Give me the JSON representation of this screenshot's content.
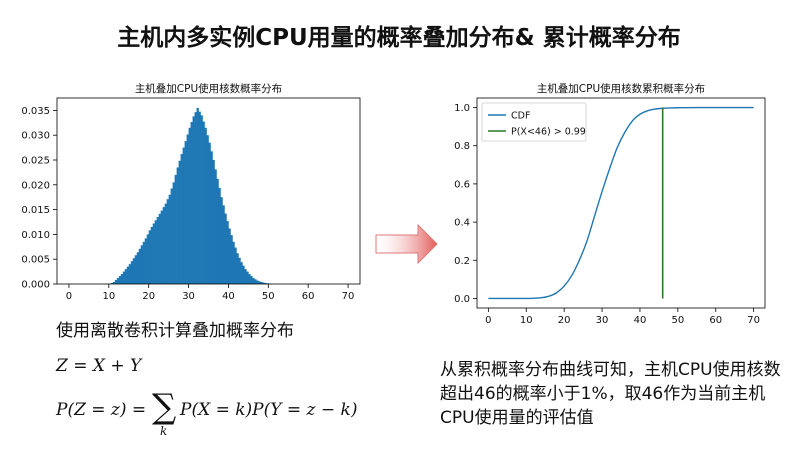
{
  "title": "主机内多实例CPU用量的概率叠加分布& 累计概率分布",
  "left_caption": "使用离散卷积计算叠加概率分布",
  "formula_line1": "Z = X + Y",
  "formula_line2_left": "P(Z = z) =",
  "formula_sum_symbol": "∑",
  "formula_sum_index": "k",
  "formula_line2_right": "P(X = k)P(Y = z − k)",
  "right_caption": "从累积概率分布曲线可知，主机CPU使用核数超出46的概率小于1%，取46作为当前主机CPU使用量的评估值",
  "colors": {
    "series": "#1f77b4",
    "threshold": "#2a7a2a",
    "arrow": "#e05050"
  },
  "chart_data": [
    {
      "type": "bar",
      "title": "主机叠加CPU使用核数概率分布",
      "xlabel": "",
      "ylabel": "",
      "xlim": [
        -3,
        73
      ],
      "ylim": [
        0,
        0.0375
      ],
      "xticks": [
        "0",
        "10",
        "20",
        "30",
        "40",
        "50",
        "60",
        "70"
      ],
      "yticks": [
        "0.000",
        "0.005",
        "0.010",
        "0.015",
        "0.020",
        "0.025",
        "0.030",
        "0.035"
      ],
      "grid": false,
      "bin_width": 0.5,
      "series": [
        {
          "values": [
            [
              11.0,
              0.0004
            ],
            [
              12.0,
              0.0012
            ],
            [
              13.0,
              0.002
            ],
            [
              14.0,
              0.003
            ],
            [
              15.0,
              0.004
            ],
            [
              16.0,
              0.0052
            ],
            [
              17.0,
              0.0064
            ],
            [
              18.0,
              0.0078
            ],
            [
              19.0,
              0.0092
            ],
            [
              20.0,
              0.0108
            ],
            [
              21.0,
              0.0122
            ],
            [
              22.0,
              0.0135
            ],
            [
              23.0,
              0.0148
            ],
            [
              24.0,
              0.0162
            ],
            [
              25.0,
              0.018
            ],
            [
              26.0,
              0.0205
            ],
            [
              27.0,
              0.0235
            ],
            [
              28.0,
              0.0262
            ],
            [
              29.0,
              0.0288
            ],
            [
              30.0,
              0.0315
            ],
            [
              31.0,
              0.0338
            ],
            [
              32.0,
              0.0355
            ],
            [
              33.0,
              0.034
            ],
            [
              34.0,
              0.0315
            ],
            [
              35.0,
              0.0285
            ],
            [
              36.0,
              0.025
            ],
            [
              37.0,
              0.0212
            ],
            [
              38.0,
              0.0175
            ],
            [
              39.0,
              0.0142
            ],
            [
              40.0,
              0.0112
            ],
            [
              41.0,
              0.0085
            ],
            [
              42.0,
              0.0062
            ],
            [
              43.0,
              0.0044
            ],
            [
              44.0,
              0.003
            ],
            [
              45.0,
              0.002
            ],
            [
              46.0,
              0.0012
            ],
            [
              47.0,
              0.0007
            ],
            [
              48.0,
              0.0004
            ],
            [
              49.0,
              0.0002
            ],
            [
              50.0,
              0.0001
            ]
          ]
        }
      ]
    },
    {
      "type": "line",
      "title": "主机叠加CPU使用核数累积概率分布",
      "xlabel": "",
      "ylabel": "",
      "xlim": [
        -3,
        73
      ],
      "ylim": [
        -0.05,
        1.05
      ],
      "xticks": [
        "0",
        "10",
        "20",
        "30",
        "40",
        "50",
        "60",
        "70"
      ],
      "yticks": [
        "0.0",
        "0.2",
        "0.4",
        "0.6",
        "0.8",
        "1.0"
      ],
      "grid": false,
      "legend_position": "top-left",
      "series": [
        {
          "name": "CDF",
          "x": [
            0,
            10,
            12,
            14,
            16,
            18,
            20,
            22,
            24,
            26,
            28,
            30,
            32,
            34,
            36,
            38,
            40,
            42,
            44,
            46,
            48,
            50,
            55,
            70
          ],
          "y": [
            0.0,
            0.0,
            0.001,
            0.004,
            0.012,
            0.03,
            0.065,
            0.12,
            0.2,
            0.3,
            0.43,
            0.56,
            0.68,
            0.79,
            0.87,
            0.93,
            0.965,
            0.983,
            0.992,
            0.996,
            0.998,
            0.999,
            1.0,
            1.0
          ]
        },
        {
          "name": "P(X<46) > 0.99",
          "x": [
            46,
            46
          ],
          "y": [
            0.0,
            1.0
          ]
        }
      ]
    }
  ]
}
